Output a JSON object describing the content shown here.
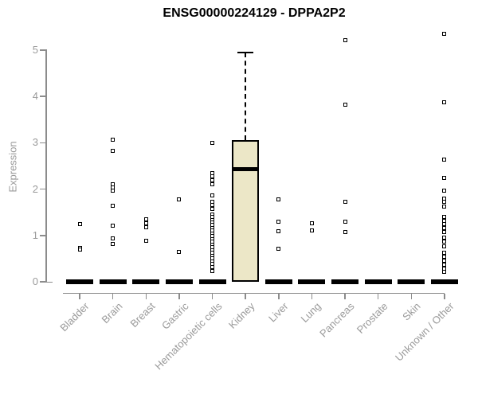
{
  "page": {
    "title": "ENSG00000224129 - DPPA2P2"
  },
  "chart_data": {
    "type": "boxplot",
    "title": "ENSG00000224129 - DPPA2P2",
    "xlabel": "",
    "ylabel": "Expression",
    "ylim": [
      0,
      5
    ],
    "yticks": [
      "0",
      "1",
      "2",
      "3",
      "4",
      "5"
    ],
    "grid": false,
    "legend": false,
    "categories": [
      "Bladder",
      "Brain",
      "Breast",
      "Gastric",
      "Hematopoietic cells",
      "Kidney",
      "Liver",
      "Lung",
      "Pancreas",
      "Prostate",
      "Skin",
      "Unknown / Other"
    ],
    "boxes": [
      {
        "category": "Bladder",
        "q1": 0,
        "median": 0,
        "q3": 0,
        "whisker_low": 0,
        "whisker_high": 0,
        "outliers": [
          1.24,
          0.73,
          0.7
        ]
      },
      {
        "category": "Brain",
        "q1": 0,
        "median": 0,
        "q3": 0,
        "whisker_low": 0,
        "whisker_high": 0,
        "outliers": [
          3.07,
          2.82,
          2.1,
          2.03,
          1.97,
          1.64,
          1.21,
          0.93,
          0.81
        ]
      },
      {
        "category": "Breast",
        "q1": 0,
        "median": 0,
        "q3": 0,
        "whisker_low": 0,
        "whisker_high": 0,
        "outliers": [
          1.35,
          1.26,
          1.17,
          0.88
        ]
      },
      {
        "category": "Gastric",
        "q1": 0,
        "median": 0,
        "q3": 0,
        "whisker_low": 0,
        "whisker_high": 0,
        "outliers": [
          1.77,
          0.65
        ]
      },
      {
        "category": "Hematopoietic cells",
        "q1": 0,
        "median": 0,
        "q3": 0,
        "whisker_low": 0,
        "whisker_high": 0,
        "outliers": [
          3.0,
          2.35,
          2.27,
          2.19,
          2.11,
          1.86,
          1.73,
          1.65,
          1.57,
          1.46,
          1.4,
          1.34,
          1.28,
          1.22,
          1.16,
          1.1,
          1.04,
          0.98,
          0.92,
          0.86,
          0.8,
          0.74,
          0.68,
          0.62,
          0.56,
          0.5,
          0.44,
          0.38,
          0.31,
          0.24
        ]
      },
      {
        "category": "Kidney",
        "q1": 0,
        "median": 2.43,
        "q3": 3.06,
        "whisker_low": 0,
        "whisker_high": 4.95,
        "outliers": []
      },
      {
        "category": "Liver",
        "q1": 0,
        "median": 0,
        "q3": 0,
        "whisker_low": 0,
        "whisker_high": 0,
        "outliers": [
          1.78,
          1.3,
          1.09,
          0.71
        ]
      },
      {
        "category": "Lung",
        "q1": 0,
        "median": 0,
        "q3": 0,
        "whisker_low": 0,
        "whisker_high": 0,
        "outliers": [
          1.26,
          1.1
        ]
      },
      {
        "category": "Pancreas",
        "q1": 0,
        "median": 0,
        "q3": 0,
        "whisker_low": 0,
        "whisker_high": 0,
        "outliers": [
          5.22,
          3.82,
          1.72,
          1.3,
          1.07
        ]
      },
      {
        "category": "Prostate",
        "q1": 0,
        "median": 0,
        "q3": 0,
        "whisker_low": 0,
        "whisker_high": 0,
        "outliers": []
      },
      {
        "category": "Skin",
        "q1": 0,
        "median": 0,
        "q3": 0,
        "whisker_low": 0,
        "whisker_high": 0,
        "outliers": []
      },
      {
        "category": "Unknown / Other",
        "q1": 0,
        "median": 0,
        "q3": 0,
        "whisker_low": 0,
        "whisker_high": 0,
        "outliers": [
          5.35,
          3.87,
          2.63,
          2.25,
          1.97,
          1.8,
          1.72,
          1.63,
          1.4,
          1.32,
          1.24,
          1.16,
          1.08,
          0.95,
          0.86,
          0.77,
          0.63,
          0.54,
          0.45,
          0.37,
          0.29,
          0.22
        ]
      }
    ],
    "colors": {
      "box_fill": "#ece7c7",
      "box_border": "#000000",
      "median": "#000000",
      "collapsed_bar": "#000000",
      "axis": "#8c8c8c",
      "tick_label": "#9a9a9a",
      "title": "#000000",
      "background": "#ffffff"
    }
  }
}
